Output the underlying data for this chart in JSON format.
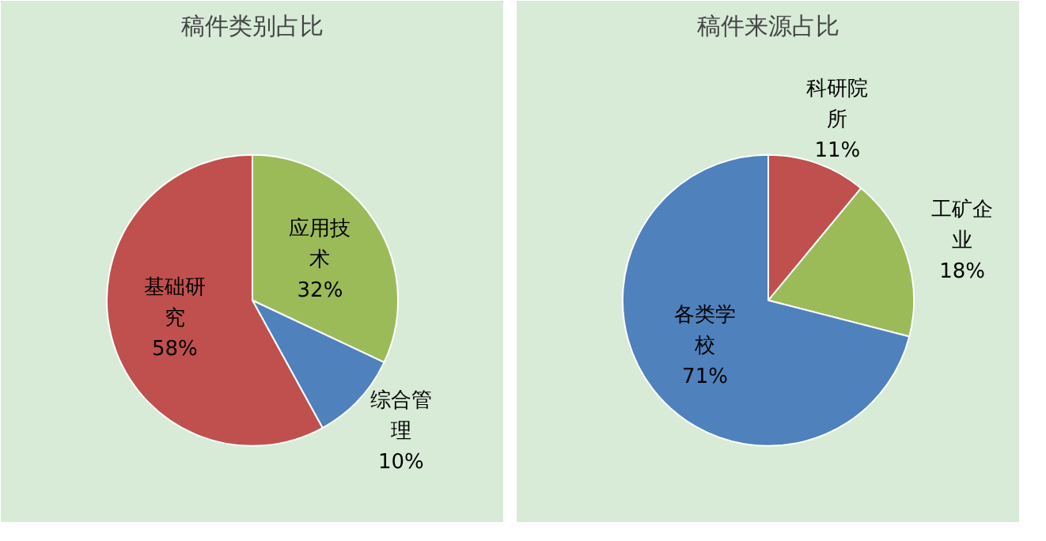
{
  "chart_data": [
    {
      "type": "pie",
      "title": "稿件类别占比",
      "categories": [
        "应用技术",
        "综合管理",
        "基础研究"
      ],
      "values": [
        32,
        10,
        58
      ],
      "colors": [
        "#9bbb59",
        "#4f81bd",
        "#c0504d"
      ],
      "value_labels": [
        "32%",
        "10%",
        "58%"
      ]
    },
    {
      "type": "pie",
      "title": "稿件来源占比",
      "categories": [
        "科研院所",
        "工矿企业",
        "各类学校"
      ],
      "values": [
        11,
        18,
        71
      ],
      "colors": [
        "#c0504d",
        "#9bbb59",
        "#4f81bd"
      ],
      "value_labels": [
        "11%",
        "18%",
        "71%"
      ]
    }
  ]
}
